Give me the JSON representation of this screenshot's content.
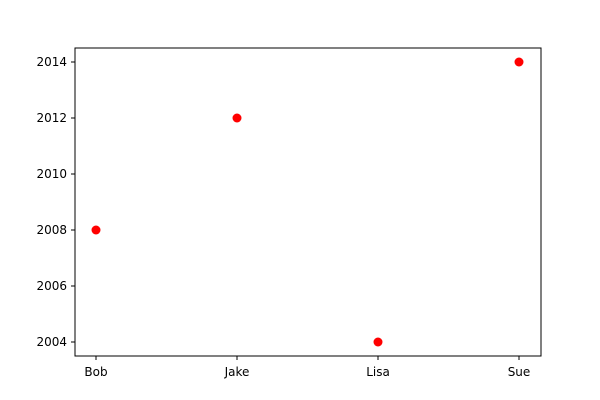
{
  "chart_data": {
    "type": "scatter",
    "categories": [
      "Bob",
      "Jake",
      "Lisa",
      "Sue"
    ],
    "values": [
      2008,
      2012,
      2004,
      2014
    ],
    "ylim": [
      2003.5,
      2014.5
    ],
    "yticks": [
      2004,
      2006,
      2008,
      2010,
      2012,
      2014
    ],
    "title": "",
    "xlabel": "",
    "ylabel": "",
    "grid": false,
    "marker_color": "#ff0000"
  }
}
